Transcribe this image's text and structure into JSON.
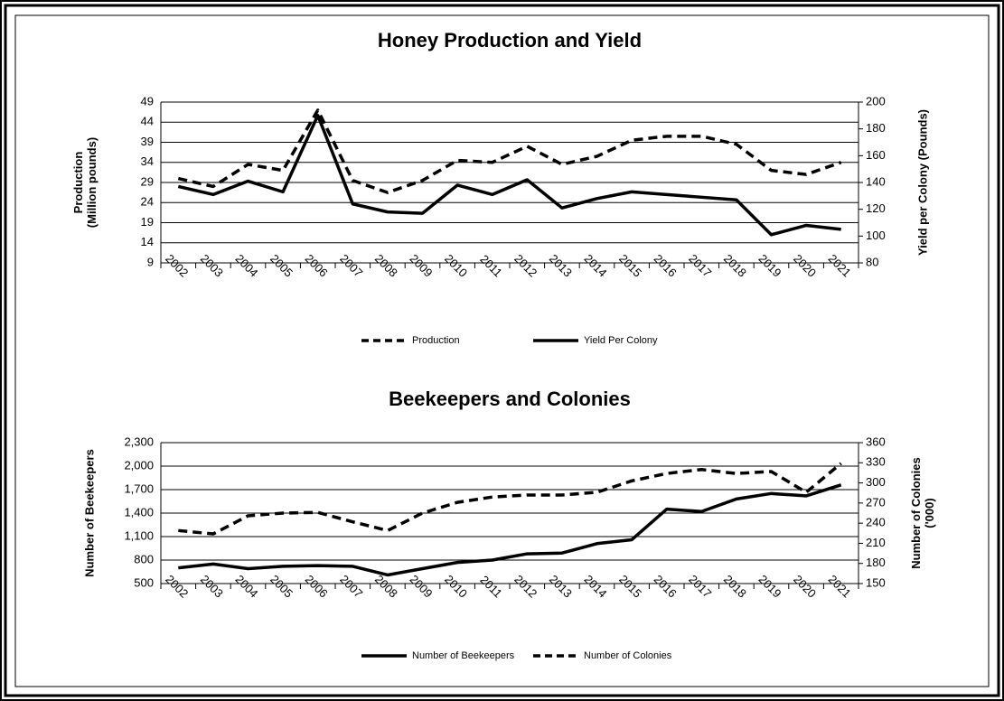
{
  "chart_data": [
    {
      "type": "line",
      "title": "Honey Production and Yield",
      "ylabel": [
        "Production",
        "(Million pounds)"
      ],
      "y2label": [
        "Yield per Colony (Pounds)"
      ],
      "categories": [
        "2002",
        "2003",
        "2004",
        "2005",
        "2006",
        "2007",
        "2008",
        "2009",
        "2010",
        "2011",
        "2012",
        "2013",
        "2014",
        "2015",
        "2016",
        "2017",
        "2018",
        "2019",
        "2020",
        "2021"
      ],
      "series": [
        {
          "name": "Production",
          "color": "#000000",
          "style": "dashed",
          "values": [
            30,
            28,
            33.5,
            32,
            47,
            29.5,
            26.5,
            29.5,
            34.5,
            34,
            38,
            33.5,
            35.5,
            39.5,
            40.5,
            40.5,
            38.5,
            32,
            31,
            34
          ]
        },
        {
          "name": "Yield Per Colony",
          "color": "#000000",
          "style": "solid",
          "axis": "y2",
          "values": [
            137,
            131,
            141,
            133,
            190,
            124,
            118,
            117,
            138,
            131,
            142,
            121,
            128,
            133,
            131,
            129,
            127,
            101,
            108,
            105
          ]
        }
      ],
      "ylim": [
        9,
        49
      ],
      "yticks": [
        9,
        14,
        19,
        24,
        29,
        34,
        39,
        44,
        49
      ],
      "y2lim": [
        80,
        200
      ],
      "y2ticks": [
        80,
        100,
        120,
        140,
        160,
        180,
        200
      ],
      "grid": true,
      "legend": "bottom"
    },
    {
      "type": "line",
      "title": "Beekeepers and Colonies",
      "ylabel": [
        "Number of Beekeepers"
      ],
      "y2label": [
        "Number of Colonies",
        "('000)"
      ],
      "categories": [
        "2002",
        "2003",
        "2004",
        "2005",
        "2006",
        "2007",
        "2008",
        "2009",
        "2010",
        "2011",
        "2012",
        "2013",
        "2014",
        "2015",
        "2016",
        "2017",
        "2018",
        "2019",
        "2020",
        "2021"
      ],
      "series": [
        {
          "name": "Number of Beekeepers",
          "color": "#000000",
          "style": "solid",
          "values": [
            700,
            750,
            690,
            720,
            730,
            720,
            610,
            690,
            770,
            800,
            880,
            890,
            1010,
            1060,
            1450,
            1420,
            1580,
            1650,
            1620,
            1760
          ]
        },
        {
          "name": "Number of Colonies",
          "color": "#000000",
          "style": "dashed",
          "axis": "y2",
          "values": [
            229,
            224,
            251,
            255,
            256,
            242,
            229,
            255,
            271,
            279,
            282,
            282,
            286,
            303,
            314,
            320,
            314,
            317,
            286,
            329
          ]
        }
      ],
      "ylim": [
        500,
        2300
      ],
      "yticks": [
        500,
        800,
        {
          "value": 1100,
          "label": "1,100"
        },
        {
          "value": 1400,
          "label": "1,400"
        },
        {
          "value": 1700,
          "label": "1,700"
        },
        {
          "value": 2000,
          "label": "2,000"
        },
        {
          "value": 2300,
          "label": "2,300"
        }
      ],
      "y2lim": [
        150,
        360
      ],
      "y2ticks": [
        150,
        180,
        210,
        240,
        270,
        300,
        330,
        360
      ],
      "grid": true,
      "legend": "bottom"
    }
  ]
}
